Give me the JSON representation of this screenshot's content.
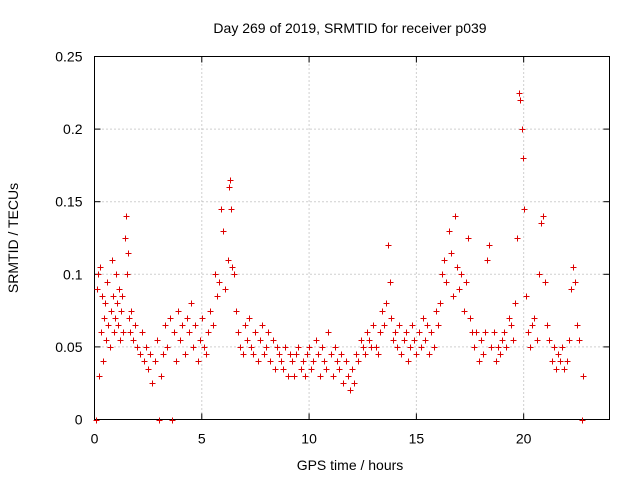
{
  "chart_data": {
    "type": "scatter",
    "title": "Day 269 of 2019, SRMTID for receiver p039",
    "xlabel": "GPS time / hours",
    "ylabel": "SRMTID / TECUs",
    "xlim": [
      0,
      24
    ],
    "ylim": [
      0,
      0.25
    ],
    "xticks": [
      0,
      5,
      10,
      15,
      20
    ],
    "xtick_labels": [
      "0",
      "5",
      "10",
      "15",
      "20"
    ],
    "yticks": [
      0,
      0.05,
      0.1,
      0.15,
      0.2,
      0.25
    ],
    "ytick_labels": [
      "0",
      "0.05",
      "0.1",
      "0.15",
      "0.2",
      "0.25"
    ],
    "grid": true,
    "marker": "+",
    "color": "#dd0000",
    "series": [
      {
        "name": "SRMTID",
        "points": [
          [
            0.05,
            0.0
          ],
          [
            0.1,
            0.09
          ],
          [
            0.15,
            0.1
          ],
          [
            0.2,
            0.03
          ],
          [
            0.25,
            0.105
          ],
          [
            0.3,
            0.06
          ],
          [
            0.35,
            0.085
          ],
          [
            0.4,
            0.04
          ],
          [
            0.45,
            0.07
          ],
          [
            0.5,
            0.08
          ],
          [
            0.55,
            0.055
          ],
          [
            0.6,
            0.095
          ],
          [
            0.65,
            0.065
          ],
          [
            0.7,
            0.05
          ],
          [
            0.75,
            0.075
          ],
          [
            0.8,
            0.11
          ],
          [
            0.85,
            0.085
          ],
          [
            0.9,
            0.06
          ],
          [
            0.95,
            0.07
          ],
          [
            1.0,
            0.1
          ],
          [
            1.05,
            0.08
          ],
          [
            1.1,
            0.065
          ],
          [
            1.15,
            0.09
          ],
          [
            1.2,
            0.055
          ],
          [
            1.25,
            0.075
          ],
          [
            1.3,
            0.085
          ],
          [
            1.35,
            0.06
          ],
          [
            1.4,
            0.125
          ],
          [
            1.45,
            0.14
          ],
          [
            1.5,
            0.1
          ],
          [
            1.55,
            0.115
          ],
          [
            1.6,
            0.07
          ],
          [
            1.65,
            0.06
          ],
          [
            1.7,
            0.075
          ],
          [
            1.8,
            0.055
          ],
          [
            1.9,
            0.065
          ],
          [
            2.0,
            0.05
          ],
          [
            2.1,
            0.045
          ],
          [
            2.2,
            0.06
          ],
          [
            2.3,
            0.04
          ],
          [
            2.4,
            0.05
          ],
          [
            2.5,
            0.035
          ],
          [
            2.6,
            0.045
          ],
          [
            2.7,
            0.025
          ],
          [
            2.8,
            0.04
          ],
          [
            2.9,
            0.055
          ],
          [
            3.0,
            0.0
          ],
          [
            3.1,
            0.03
          ],
          [
            3.2,
            0.045
          ],
          [
            3.3,
            0.065
          ],
          [
            3.4,
            0.05
          ],
          [
            3.5,
            0.07
          ],
          [
            3.6,
            0.0
          ],
          [
            3.7,
            0.06
          ],
          [
            3.8,
            0.04
          ],
          [
            3.9,
            0.075
          ],
          [
            4.0,
            0.055
          ],
          [
            4.1,
            0.065
          ],
          [
            4.2,
            0.045
          ],
          [
            4.3,
            0.07
          ],
          [
            4.4,
            0.06
          ],
          [
            4.5,
            0.08
          ],
          [
            4.6,
            0.05
          ],
          [
            4.7,
            0.065
          ],
          [
            4.8,
            0.04
          ],
          [
            4.9,
            0.055
          ],
          [
            5.0,
            0.07
          ],
          [
            5.1,
            0.05
          ],
          [
            5.2,
            0.045
          ],
          [
            5.3,
            0.06
          ],
          [
            5.4,
            0.075
          ],
          [
            5.5,
            0.065
          ],
          [
            5.6,
            0.1
          ],
          [
            5.7,
            0.085
          ],
          [
            5.8,
            0.095
          ],
          [
            5.9,
            0.145
          ],
          [
            6.0,
            0.13
          ],
          [
            6.1,
            0.09
          ],
          [
            6.2,
            0.11
          ],
          [
            6.25,
            0.16
          ],
          [
            6.3,
            0.165
          ],
          [
            6.35,
            0.145
          ],
          [
            6.4,
            0.105
          ],
          [
            6.5,
            0.1
          ],
          [
            6.6,
            0.075
          ],
          [
            6.7,
            0.06
          ],
          [
            6.8,
            0.05
          ],
          [
            6.9,
            0.045
          ],
          [
            7.0,
            0.065
          ],
          [
            7.1,
            0.055
          ],
          [
            7.2,
            0.07
          ],
          [
            7.3,
            0.05
          ],
          [
            7.4,
            0.045
          ],
          [
            7.5,
            0.06
          ],
          [
            7.6,
            0.04
          ],
          [
            7.7,
            0.055
          ],
          [
            7.8,
            0.065
          ],
          [
            7.9,
            0.045
          ],
          [
            8.0,
            0.05
          ],
          [
            8.1,
            0.06
          ],
          [
            8.2,
            0.04
          ],
          [
            8.3,
            0.055
          ],
          [
            8.4,
            0.035
          ],
          [
            8.5,
            0.05
          ],
          [
            8.6,
            0.045
          ],
          [
            8.7,
            0.04
          ],
          [
            8.8,
            0.035
          ],
          [
            8.9,
            0.05
          ],
          [
            9.0,
            0.03
          ],
          [
            9.1,
            0.045
          ],
          [
            9.2,
            0.04
          ],
          [
            9.3,
            0.03
          ],
          [
            9.4,
            0.045
          ],
          [
            9.5,
            0.05
          ],
          [
            9.6,
            0.035
          ],
          [
            9.7,
            0.04
          ],
          [
            9.8,
            0.03
          ],
          [
            9.9,
            0.045
          ],
          [
            10.0,
            0.05
          ],
          [
            10.1,
            0.035
          ],
          [
            10.2,
            0.04
          ],
          [
            10.3,
            0.055
          ],
          [
            10.4,
            0.045
          ],
          [
            10.5,
            0.03
          ],
          [
            10.6,
            0.05
          ],
          [
            10.7,
            0.04
          ],
          [
            10.8,
            0.035
          ],
          [
            10.9,
            0.06
          ],
          [
            11.0,
            0.045
          ],
          [
            11.1,
            0.03
          ],
          [
            11.2,
            0.05
          ],
          [
            11.3,
            0.04
          ],
          [
            11.4,
            0.035
          ],
          [
            11.5,
            0.045
          ],
          [
            11.6,
            0.025
          ],
          [
            11.7,
            0.04
          ],
          [
            11.8,
            0.03
          ],
          [
            11.9,
            0.02
          ],
          [
            12.0,
            0.035
          ],
          [
            12.1,
            0.025
          ],
          [
            12.2,
            0.045
          ],
          [
            12.3,
            0.04
          ],
          [
            12.4,
            0.055
          ],
          [
            12.5,
            0.05
          ],
          [
            12.6,
            0.045
          ],
          [
            12.7,
            0.06
          ],
          [
            12.8,
            0.055
          ],
          [
            12.9,
            0.05
          ],
          [
            13.0,
            0.065
          ],
          [
            13.1,
            0.05
          ],
          [
            13.2,
            0.045
          ],
          [
            13.3,
            0.06
          ],
          [
            13.4,
            0.075
          ],
          [
            13.5,
            0.065
          ],
          [
            13.6,
            0.08
          ],
          [
            13.7,
            0.12
          ],
          [
            13.75,
            0.095
          ],
          [
            13.8,
            0.07
          ],
          [
            13.9,
            0.055
          ],
          [
            14.0,
            0.06
          ],
          [
            14.1,
            0.05
          ],
          [
            14.2,
            0.065
          ],
          [
            14.3,
            0.045
          ],
          [
            14.4,
            0.055
          ],
          [
            14.5,
            0.06
          ],
          [
            14.6,
            0.04
          ],
          [
            14.7,
            0.05
          ],
          [
            14.8,
            0.065
          ],
          [
            14.9,
            0.055
          ],
          [
            15.0,
            0.045
          ],
          [
            15.1,
            0.06
          ],
          [
            15.2,
            0.05
          ],
          [
            15.3,
            0.07
          ],
          [
            15.4,
            0.055
          ],
          [
            15.5,
            0.065
          ],
          [
            15.6,
            0.045
          ],
          [
            15.7,
            0.06
          ],
          [
            15.8,
            0.05
          ],
          [
            15.9,
            0.075
          ],
          [
            16.0,
            0.065
          ],
          [
            16.1,
            0.08
          ],
          [
            16.2,
            0.1
          ],
          [
            16.3,
            0.11
          ],
          [
            16.4,
            0.095
          ],
          [
            16.5,
            0.13
          ],
          [
            16.6,
            0.115
          ],
          [
            16.7,
            0.085
          ],
          [
            16.8,
            0.14
          ],
          [
            16.9,
            0.105
          ],
          [
            17.0,
            0.09
          ],
          [
            17.1,
            0.1
          ],
          [
            17.2,
            0.075
          ],
          [
            17.3,
            0.095
          ],
          [
            17.4,
            0.125
          ],
          [
            17.5,
            0.07
          ],
          [
            17.6,
            0.06
          ],
          [
            17.7,
            0.05
          ],
          [
            17.8,
            0.06
          ],
          [
            17.9,
            0.04
          ],
          [
            18.0,
            0.055
          ],
          [
            18.1,
            0.045
          ],
          [
            18.2,
            0.06
          ],
          [
            18.3,
            0.11
          ],
          [
            18.4,
            0.12
          ],
          [
            18.5,
            0.05
          ],
          [
            18.6,
            0.06
          ],
          [
            18.7,
            0.04
          ],
          [
            18.8,
            0.05
          ],
          [
            18.9,
            0.045
          ],
          [
            19.0,
            0.055
          ],
          [
            19.1,
            0.06
          ],
          [
            19.2,
            0.05
          ],
          [
            19.3,
            0.07
          ],
          [
            19.4,
            0.065
          ],
          [
            19.5,
            0.055
          ],
          [
            19.6,
            0.08
          ],
          [
            19.7,
            0.125
          ],
          [
            19.8,
            0.225
          ],
          [
            19.85,
            0.22
          ],
          [
            19.9,
            0.2
          ],
          [
            19.95,
            0.18
          ],
          [
            20.0,
            0.145
          ],
          [
            20.1,
            0.085
          ],
          [
            20.2,
            0.06
          ],
          [
            20.3,
            0.05
          ],
          [
            20.4,
            0.065
          ],
          [
            20.5,
            0.07
          ],
          [
            20.6,
            0.055
          ],
          [
            20.7,
            0.1
          ],
          [
            20.8,
            0.135
          ],
          [
            20.9,
            0.14
          ],
          [
            21.0,
            0.095
          ],
          [
            21.1,
            0.065
          ],
          [
            21.2,
            0.055
          ],
          [
            21.3,
            0.04
          ],
          [
            21.4,
            0.05
          ],
          [
            21.5,
            0.035
          ],
          [
            21.6,
            0.045
          ],
          [
            21.7,
            0.04
          ],
          [
            21.8,
            0.05
          ],
          [
            21.9,
            0.035
          ],
          [
            22.0,
            0.04
          ],
          [
            22.1,
            0.055
          ],
          [
            22.2,
            0.09
          ],
          [
            22.3,
            0.105
          ],
          [
            22.4,
            0.095
          ],
          [
            22.5,
            0.065
          ],
          [
            22.6,
            0.055
          ],
          [
            22.7,
            0.0
          ],
          [
            22.75,
            0.03
          ]
        ]
      }
    ]
  }
}
